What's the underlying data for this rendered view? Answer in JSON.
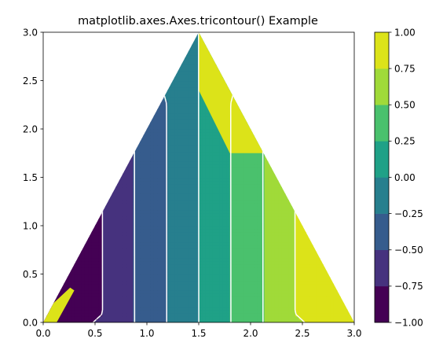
{
  "chart_data": {
    "type": "tricontourf",
    "title": "matplotlib.axes.Axes.tricontour() Example",
    "xlabel": "",
    "ylabel": "",
    "xlim": [
      0,
      3
    ],
    "ylim": [
      0,
      3
    ],
    "x_ticks": [
      0.0,
      0.5,
      1.0,
      1.5,
      2.0,
      2.5,
      3.0
    ],
    "x_tick_labels": [
      "0.0",
      "0.5",
      "1.0",
      "1.5",
      "2.0",
      "2.5",
      "3.0"
    ],
    "y_ticks": [
      0.0,
      0.5,
      1.0,
      1.5,
      2.0,
      2.5,
      3.0
    ],
    "y_tick_labels": [
      "0.0",
      "0.5",
      "1.0",
      "1.5",
      "2.0",
      "2.5",
      "3.0"
    ],
    "triangle_vertices": [
      [
        0,
        0
      ],
      [
        3,
        0
      ],
      [
        1.5,
        3
      ]
    ],
    "levels": [
      -1.0,
      -0.75,
      -0.5,
      -0.25,
      0.0,
      0.25,
      0.5,
      0.75,
      1.0
    ],
    "colorbar": {
      "ticks": [
        -1.0,
        -0.75,
        -0.5,
        -0.25,
        0.0,
        0.25,
        0.5,
        0.75,
        1.0
      ],
      "tick_labels": [
        "−1.00",
        "−0.75",
        "−0.50",
        "−0.25",
        "0.00",
        "0.25",
        "0.50",
        "0.75",
        "1.00"
      ],
      "band_colors": [
        "#440154",
        "#46327e",
        "#365c8d",
        "#277f8e",
        "#1fa187",
        "#4ac16d",
        "#a0da39",
        "#dce319"
      ]
    },
    "contour_lines": {
      "color": "#ffffff",
      "negative_style": "dashed",
      "positive_style": "solid"
    },
    "regions": [
      {
        "level": 0.875,
        "color": "#dce319",
        "points": [
          [
            1.5,
            3
          ],
          [
            1.5,
            2.4
          ],
          [
            1.8,
            1.75
          ],
          [
            2.12,
            1.75
          ],
          [
            2.45,
            2.1
          ]
        ]
      },
      {
        "level": 0.875,
        "color": "#dce319",
        "points": [
          [
            0,
            0
          ],
          [
            0.13,
            0
          ],
          [
            0.3,
            0.33
          ],
          [
            0.26,
            0.36
          ],
          [
            0.1,
            0.2
          ]
        ]
      }
    ]
  }
}
